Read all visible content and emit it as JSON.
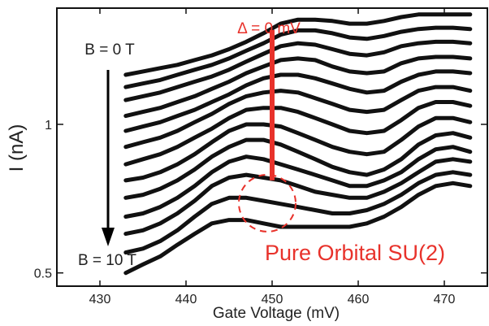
{
  "chart_data": {
    "type": "line",
    "title": "",
    "xlabel": "Gate Voltage (mV)",
    "ylabel": "I (nA)",
    "xlim": [
      425,
      475
    ],
    "ylim_log": [
      0.47,
      1.72
    ],
    "y_scale": "log",
    "grid": false,
    "x_ticks": [
      430,
      440,
      450,
      460,
      470
    ],
    "y_ticks": [
      {
        "value": 0.5,
        "label": "0.5"
      },
      {
        "value": 1,
        "label": "1"
      }
    ],
    "series_color": "#111111",
    "x": [
      433,
      435,
      437,
      439,
      441,
      443,
      445,
      447,
      449,
      451,
      453,
      455,
      457,
      459,
      461,
      463,
      465,
      467,
      469,
      471,
      473
    ],
    "series": [
      {
        "values": [
          1.26,
          1.28,
          1.3,
          1.32,
          1.35,
          1.38,
          1.42,
          1.47,
          1.53,
          1.6,
          1.63,
          1.63,
          1.62,
          1.6,
          1.6,
          1.62,
          1.65,
          1.67,
          1.67,
          1.67,
          1.67
        ]
      },
      {
        "values": [
          1.19,
          1.21,
          1.23,
          1.26,
          1.29,
          1.32,
          1.36,
          1.41,
          1.46,
          1.52,
          1.55,
          1.55,
          1.53,
          1.5,
          1.49,
          1.51,
          1.54,
          1.56,
          1.57,
          1.57,
          1.56
        ]
      },
      {
        "values": [
          1.12,
          1.14,
          1.16,
          1.19,
          1.22,
          1.25,
          1.29,
          1.34,
          1.39,
          1.44,
          1.46,
          1.45,
          1.42,
          1.39,
          1.38,
          1.4,
          1.44,
          1.46,
          1.47,
          1.47,
          1.46
        ]
      },
      {
        "values": [
          1.04,
          1.06,
          1.08,
          1.11,
          1.14,
          1.18,
          1.22,
          1.27,
          1.31,
          1.35,
          1.36,
          1.35,
          1.31,
          1.28,
          1.27,
          1.28,
          1.33,
          1.36,
          1.37,
          1.37,
          1.36
        ]
      },
      {
        "values": [
          0.97,
          0.99,
          1.01,
          1.04,
          1.07,
          1.11,
          1.15,
          1.2,
          1.24,
          1.26,
          1.26,
          1.24,
          1.21,
          1.18,
          1.16,
          1.17,
          1.22,
          1.26,
          1.28,
          1.28,
          1.27
        ]
      },
      {
        "values": [
          0.9,
          0.92,
          0.94,
          0.97,
          1.01,
          1.05,
          1.1,
          1.14,
          1.16,
          1.17,
          1.16,
          1.13,
          1.1,
          1.07,
          1.06,
          1.07,
          1.12,
          1.17,
          1.19,
          1.19,
          1.17
        ]
      },
      {
        "values": [
          0.83,
          0.85,
          0.87,
          0.9,
          0.94,
          0.98,
          1.03,
          1.07,
          1.08,
          1.08,
          1.06,
          1.03,
          1.0,
          0.97,
          0.96,
          0.97,
          1.02,
          1.08,
          1.11,
          1.11,
          1.09
        ]
      },
      {
        "values": [
          0.77,
          0.78,
          0.8,
          0.83,
          0.87,
          0.92,
          0.97,
          1.0,
          1.0,
          0.99,
          0.96,
          0.93,
          0.9,
          0.88,
          0.87,
          0.88,
          0.93,
          0.99,
          1.03,
          1.03,
          1.01
        ]
      },
      {
        "values": [
          0.71,
          0.72,
          0.74,
          0.77,
          0.81,
          0.86,
          0.9,
          0.93,
          0.93,
          0.91,
          0.88,
          0.85,
          0.82,
          0.8,
          0.79,
          0.81,
          0.85,
          0.91,
          0.95,
          0.96,
          0.94
        ]
      },
      {
        "values": [
          0.65,
          0.66,
          0.68,
          0.71,
          0.75,
          0.8,
          0.84,
          0.86,
          0.85,
          0.83,
          0.81,
          0.79,
          0.77,
          0.75,
          0.75,
          0.77,
          0.8,
          0.85,
          0.89,
          0.9,
          0.88
        ]
      },
      {
        "values": [
          0.6,
          0.61,
          0.63,
          0.66,
          0.7,
          0.75,
          0.78,
          0.79,
          0.78,
          0.77,
          0.75,
          0.73,
          0.72,
          0.71,
          0.71,
          0.73,
          0.76,
          0.8,
          0.84,
          0.85,
          0.84
        ]
      },
      {
        "values": [
          0.55,
          0.56,
          0.58,
          0.61,
          0.65,
          0.69,
          0.71,
          0.71,
          0.7,
          0.69,
          0.68,
          0.67,
          0.66,
          0.66,
          0.67,
          0.69,
          0.72,
          0.76,
          0.79,
          0.8,
          0.79
        ]
      },
      {
        "values": [
          0.5,
          0.52,
          0.54,
          0.57,
          0.6,
          0.63,
          0.64,
          0.64,
          0.63,
          0.62,
          0.62,
          0.62,
          0.62,
          0.62,
          0.63,
          0.65,
          0.68,
          0.72,
          0.75,
          0.76,
          0.75
        ]
      }
    ],
    "annotations": {
      "b_start": "B = 0 T",
      "b_end": "B = 10 T",
      "delta_label": "Δ = 0 mV",
      "delta_x": 450,
      "delta_y_range": [
        0.77,
        1.53
      ],
      "circle_center": [
        450,
        0.73
      ],
      "pure_label": "Pure Orbital SU(2)",
      "highlight_color": "#e8322b",
      "arrow_color": "#000000"
    }
  }
}
